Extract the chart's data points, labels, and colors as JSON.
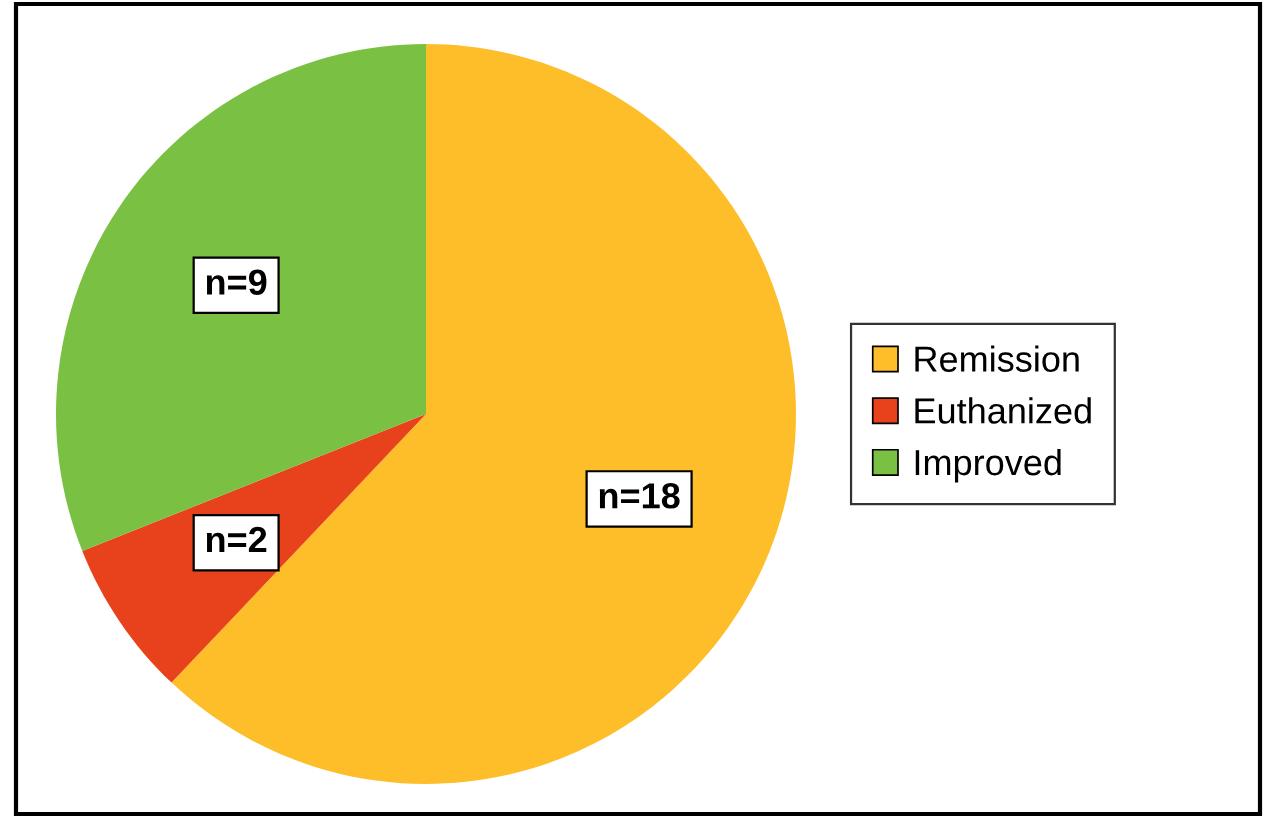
{
  "chart_data": {
    "type": "pie",
    "categories": [
      "Remission",
      "Euthanized",
      "Improved"
    ],
    "values": [
      18,
      2,
      9
    ],
    "colors": [
      "#fdbe2a",
      "#e8421c",
      "#7ac043"
    ],
    "value_labels": [
      "n=18",
      "n=2",
      "n=9"
    ],
    "legend": "right"
  }
}
